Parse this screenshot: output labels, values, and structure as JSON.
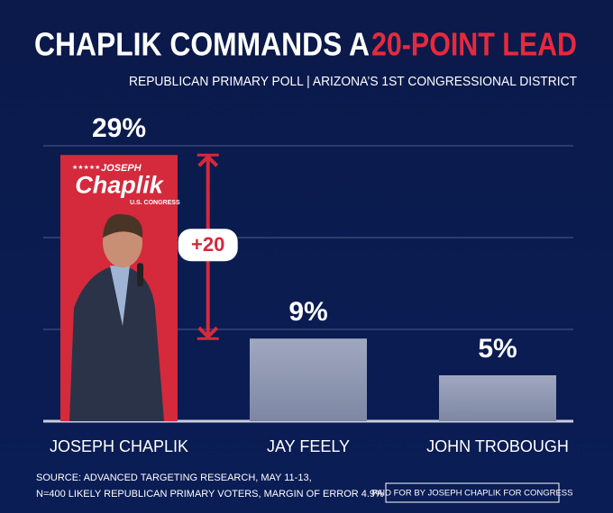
{
  "chart_data": {
    "type": "bar",
    "title": "CHAPLIK COMMANDS A ",
    "title_highlight": "20-POINT LEAD",
    "subtitle": "REPUBLICAN PRIMARY POLL  |  ARIZONA’S 1ST CONGRESSIONAL DISTRICT",
    "categories": [
      "JOSEPH CHAPLIK",
      "JAY FEELY",
      "JOHN TROBOUGH"
    ],
    "values": [
      29,
      9,
      5
    ],
    "value_labels": [
      "29%",
      "9%",
      "5%"
    ],
    "colors": [
      "#d42a3c",
      "#8e96b0",
      "#8e96b0"
    ],
    "ylim": [
      0,
      30
    ],
    "yticks": [
      0,
      10,
      20,
      30
    ],
    "grid": true,
    "annotation": "+20",
    "bar_logo": {
      "stars": "★★★★★",
      "first": "JOSEPH",
      "last": "Chaplik",
      "office": "U.S. CONGRESS"
    },
    "source": [
      "SOURCE: ADVANCED TARGETING RESEARCH, MAY 11-13,",
      "N=400 LIKELY REPUBLICAN PRIMARY VOTERS, MARGIN OF ERROR 4.9%"
    ],
    "paid_for": "PAID FOR BY JOSEPH CHAPLIK FOR CONGRESS"
  }
}
